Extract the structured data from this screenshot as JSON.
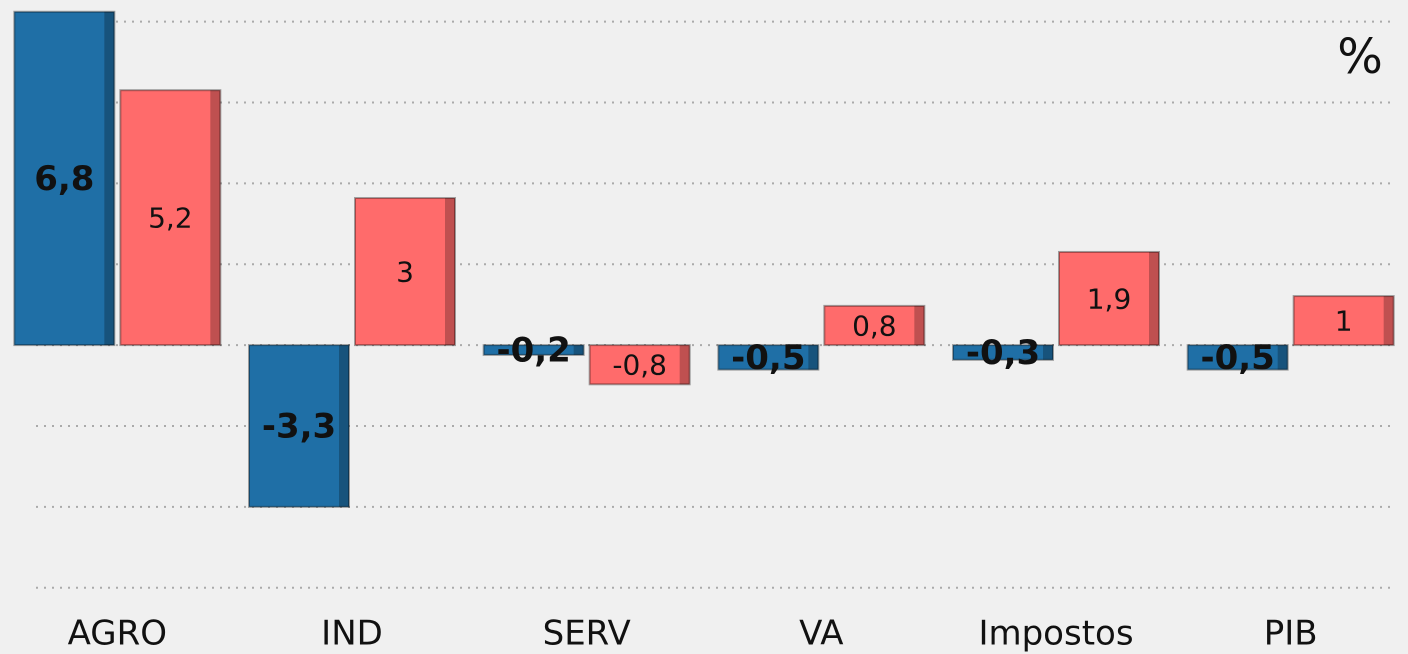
{
  "chart_data": {
    "type": "bar",
    "annotations": [
      "%"
    ],
    "categories": [
      "AGRO",
      "IND",
      "SERV",
      "VA",
      "Impostos",
      "PIB"
    ],
    "series": [
      {
        "color": "#1f6fa6",
        "values": [
          6.8,
          -3.3,
          -0.2,
          -0.5,
          -0.3,
          -0.5
        ],
        "value_labels": [
          "6,8",
          "-3,3",
          "-0,2",
          "-0,5",
          "-0,3",
          "-0,5"
        ]
      },
      {
        "color": "#ff6b6b",
        "values": [
          5.2,
          3,
          -0.8,
          0.8,
          1.9,
          1
        ],
        "value_labels": [
          "5,2",
          "3",
          "-0,8",
          "0,8",
          "1,9",
          "1"
        ]
      }
    ],
    "ylim": [
      -5.2,
      7.04
    ],
    "yticks": [
      -4.95,
      -3.3,
      -1.65,
      0,
      1.65,
      3.3,
      4.95,
      6.6
    ],
    "grid": true
  }
}
